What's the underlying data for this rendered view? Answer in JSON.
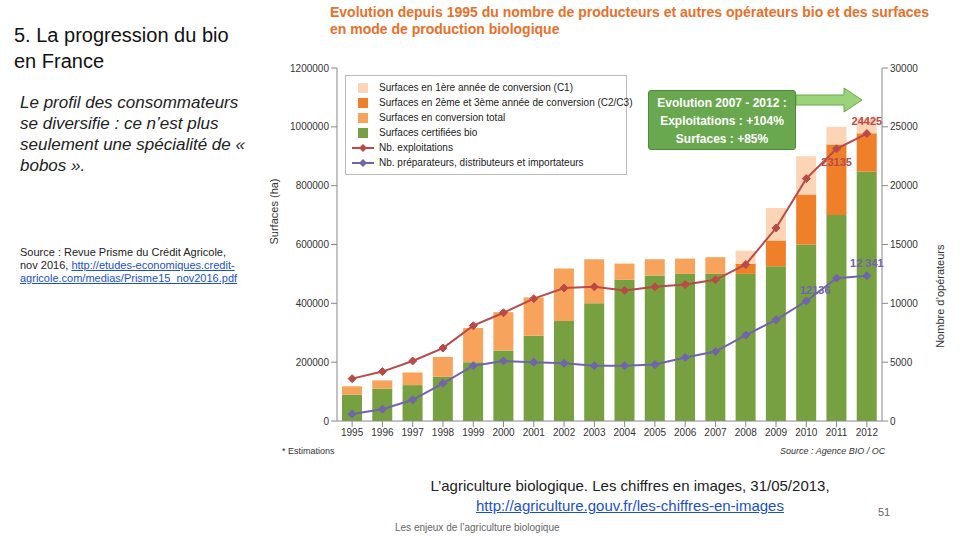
{
  "slide": {
    "heading": "5. La progression du bio en France",
    "text": "Le profil des consommateurs se diversifie : ce n’est plus seulement une spécialité de « bobos ».",
    "source": "Source : Revue Prisme du Crédit Agricole, nov 2016, ",
    "source_link": "http://etudes-economiques.credit-agricole.com/medias/Prisme15_nov2016.pdf",
    "caption": "L’agriculture biologique. Les chiffres en images, 31/05/2013,",
    "caption_link": "http://agriculture.gouv.fr/les-chiffres-en-images",
    "footer": "Les enjeux de l’agriculture biologique",
    "page": "51"
  },
  "chart_data": {
    "type": "bar",
    "stacked": true,
    "grid": false,
    "legend": "upper left",
    "title": "Evolution depuis 1995 du nombre de producteurs et autres opérateurs bio et des surfaces en mode de production biologique",
    "y_label": "Surfaces (ha)",
    "y2_label": "Nombre d’opérateurs",
    "annotations": {
      "box": [
        "Evolution 2007 - 2012 :",
        "Exploitations : +104%",
        "Surfaces : +85%"
      ],
      "footnote": "* Estimations",
      "source": "Source : Agence BIO / OC"
    },
    "categories": [
      "1995",
      "1996",
      "1997",
      "1998",
      "1999",
      "2000",
      "2001",
      "2002",
      "2003",
      "2004",
      "2005",
      "2006",
      "2007",
      "2008",
      "2009",
      "2010",
      "2011",
      "2012"
    ],
    "ylim": [
      0,
      1200000
    ],
    "yticks": [
      0,
      200000,
      400000,
      600000,
      800000,
      1000000,
      1200000
    ],
    "y2lim": [
      0,
      30000
    ],
    "y2ticks": [
      0,
      5000,
      10000,
      15000,
      20000,
      25000,
      30000
    ],
    "series": [
      {
        "name": "Surfaces en 1ère année de conversion (C1)",
        "type": "bar",
        "color": "#fbd5b5",
        "values": [
          null,
          null,
          null,
          null,
          null,
          null,
          null,
          null,
          null,
          null,
          null,
          null,
          null,
          45000,
          110000,
          130000,
          60000,
          50000
        ]
      },
      {
        "name": "Surfaces en 2ème et 3ème année de conversion (C2/C3)",
        "type": "bar",
        "color": "#f07f2a",
        "values": [
          null,
          null,
          null,
          null,
          null,
          null,
          null,
          null,
          null,
          null,
          null,
          null,
          null,
          34000,
          88000,
          170000,
          240000,
          130000
        ]
      },
      {
        "name": "Surfaces en conversion total",
        "type": "bar",
        "color": "#f8a35c",
        "values": [
          28000,
          28000,
          43000,
          68000,
          116000,
          130000,
          130000,
          178000,
          150000,
          55000,
          55000,
          52000,
          57000,
          null,
          null,
          null,
          null,
          null
        ]
      },
      {
        "name": "Surfaces certifiées bio",
        "type": "bar",
        "color": "#77a040",
        "values": [
          90000,
          110000,
          122000,
          150000,
          200000,
          240000,
          290000,
          340000,
          400000,
          480000,
          495000,
          500000,
          500000,
          500000,
          526000,
          600000,
          700000,
          848000
        ]
      },
      {
        "name": "Nb. exploitations",
        "type": "line",
        "axis": "y2",
        "color": "#b94a48",
        "marker": "diamond",
        "values": [
          3600,
          4200,
          5100,
          6200,
          8100,
          9200,
          10400,
          11300,
          11400,
          11100,
          11400,
          11600,
          12000,
          13300,
          16400,
          20600,
          23135,
          24425
        ],
        "value_labels": [
          null,
          null,
          null,
          null,
          null,
          null,
          null,
          null,
          null,
          null,
          null,
          null,
          null,
          null,
          null,
          null,
          "23135",
          "24425"
        ]
      },
      {
        "name": "Nb. préparateurs, distributeurs et importateurs",
        "type": "line",
        "axis": "y2",
        "color": "#7163ad",
        "marker": "diamond",
        "values": [
          600,
          1000,
          1800,
          3200,
          4700,
          5100,
          5000,
          4900,
          4700,
          4700,
          4800,
          5400,
          5900,
          7300,
          8600,
          10200,
          12136,
          12341
        ],
        "value_labels": [
          null,
          null,
          null,
          null,
          null,
          null,
          null,
          null,
          null,
          null,
          null,
          null,
          null,
          null,
          null,
          null,
          "12136",
          "12 341"
        ]
      }
    ]
  }
}
